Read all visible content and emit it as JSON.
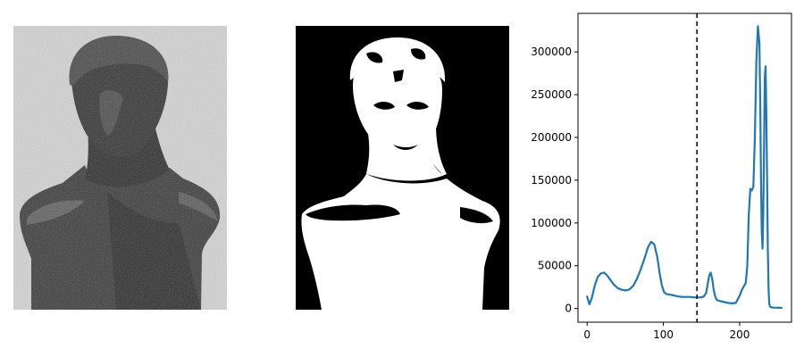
{
  "panels": [
    {
      "kind": "grayscale-image",
      "subject": "bronze bust photograph"
    },
    {
      "kind": "binary-thresholded-image",
      "subject": "bronze bust thresholded"
    },
    {
      "kind": "intensity-histogram"
    }
  ],
  "colors": {
    "line": "#1f77b4",
    "threshold": "#000000",
    "axes": "#000000",
    "background": "#ffffff",
    "photo_background": "#d8d8d8",
    "bronze": "#3a3a3a",
    "binary_fg": "#ffffff",
    "binary_bg": "#000000"
  },
  "chart_data": {
    "type": "line",
    "title": "",
    "xlabel": "",
    "ylabel": "",
    "xlim": [
      -12,
      268
    ],
    "ylim": [
      -16000,
      345000
    ],
    "xticks": [
      0,
      100,
      200
    ],
    "yticks": [
      0,
      50000,
      100000,
      150000,
      200000,
      250000,
      300000
    ],
    "xtick_labels": [
      "0",
      "100",
      "200"
    ],
    "ytick_labels": [
      "0",
      "50000",
      "100000",
      "150000",
      "200000",
      "250000",
      "300000"
    ],
    "threshold": {
      "x": 144,
      "style": "dashed"
    },
    "grid": false,
    "legend": "none",
    "series": [
      {
        "x": [
          0,
          3,
          6,
          10,
          14,
          18,
          22,
          26,
          30,
          35,
          40,
          45,
          50,
          55,
          60,
          65,
          70,
          75,
          80,
          84,
          88,
          92,
          95,
          98,
          101,
          104,
          107,
          110,
          115,
          120,
          125,
          130,
          135,
          140,
          145,
          150,
          153,
          156,
          158,
          160,
          162,
          164,
          166,
          168,
          170,
          175,
          180,
          185,
          190,
          195,
          200,
          203,
          205,
          208,
          210,
          212,
          214,
          216,
          218,
          220,
          222,
          224,
          226,
          227,
          228,
          229,
          230,
          231,
          232,
          233,
          234,
          235,
          236,
          237,
          238,
          239,
          240,
          241,
          243,
          245,
          250,
          255
        ],
        "y": [
          14000,
          5000,
          12000,
          27000,
          37000,
          41000,
          42000,
          39000,
          34000,
          28000,
          24000,
          22000,
          21000,
          22000,
          26000,
          34000,
          45000,
          58000,
          72000,
          78000,
          75000,
          60000,
          42000,
          27000,
          19000,
          17000,
          16500,
          16000,
          15000,
          14000,
          13500,
          13500,
          13500,
          13000,
          13000,
          13000,
          14000,
          18000,
          28000,
          38000,
          42000,
          35000,
          22000,
          14000,
          10000,
          8500,
          7500,
          6500,
          6000,
          6500,
          15000,
          22000,
          25000,
          30000,
          50000,
          110000,
          140000,
          138000,
          142000,
          200000,
          290000,
          330000,
          310000,
          240000,
          150000,
          90000,
          70000,
          110000,
          190000,
          270000,
          283000,
          230000,
          150000,
          70000,
          20000,
          5000,
          2000,
          1500,
          1200,
          1000,
          900,
          800
        ]
      }
    ]
  }
}
